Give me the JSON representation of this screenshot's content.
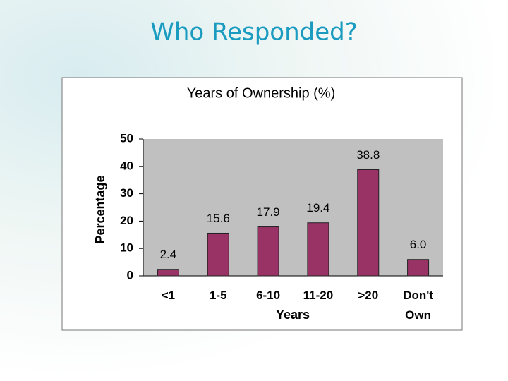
{
  "slide_title": "Who Responded?",
  "chart_data": {
    "type": "bar",
    "title": "Years of Ownership (%)",
    "x_label": "Years",
    "y_label": "Percentage",
    "categories": [
      "<1",
      "1-5",
      "6-10",
      "11-20",
      ">20",
      "Don't Own"
    ],
    "values": [
      2.4,
      15.6,
      17.9,
      19.4,
      38.8,
      6.0
    ],
    "value_labels": [
      "2.4",
      "15.6",
      "17.9",
      "19.4",
      "38.8",
      "6.0"
    ],
    "color": "#993366",
    "ylim": [
      0,
      50
    ],
    "yticks": [
      0,
      10,
      20,
      30,
      40,
      50
    ],
    "grid": false
  }
}
